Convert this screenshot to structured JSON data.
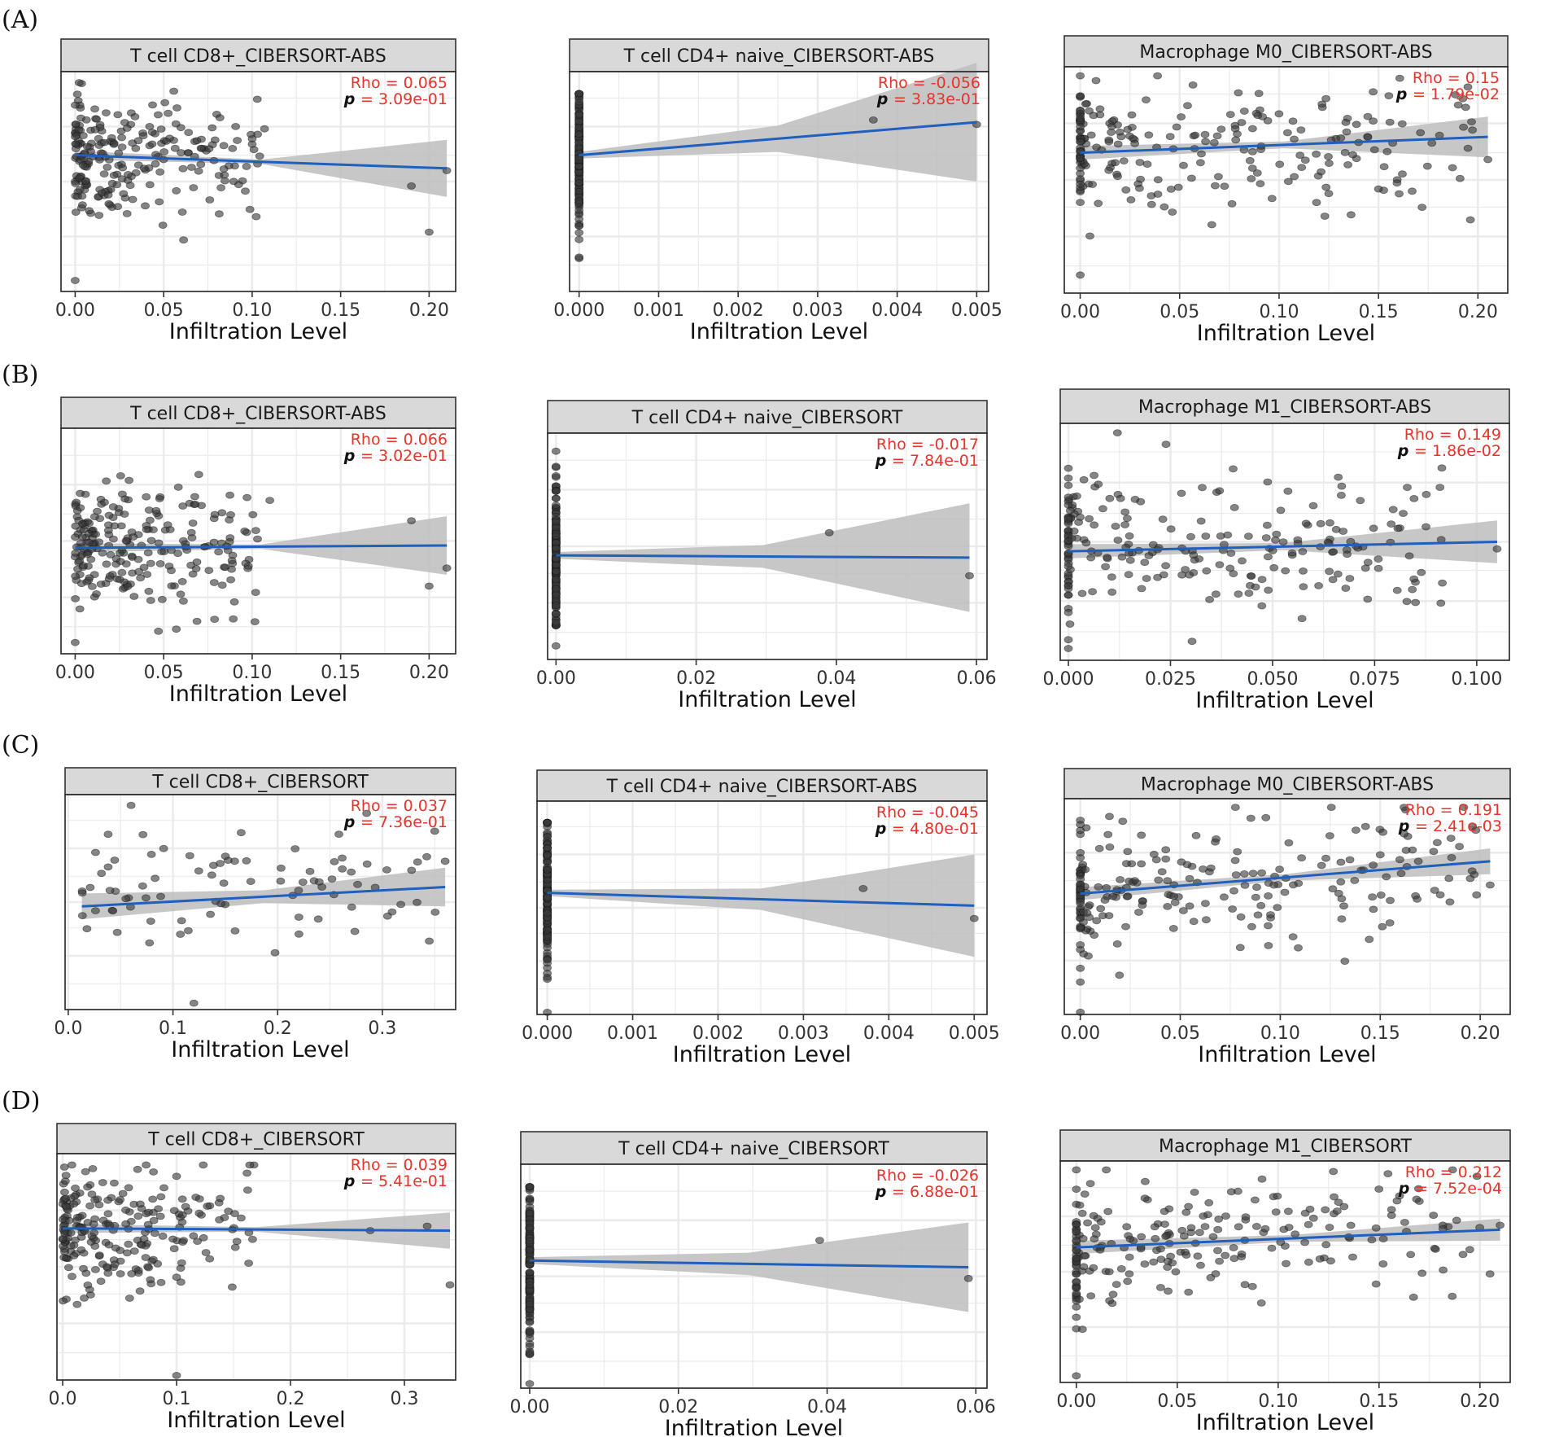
{
  "figure": {
    "row_labels": [
      "(A)",
      "(B)",
      "(C)",
      "(D)"
    ]
  },
  "colors": {
    "fit_line": "#1f5fbf",
    "confidence_band": "#bdbdbd",
    "points": "#3a3a3a",
    "rho": "#e8322b",
    "p_label": "#111111",
    "p_value": "#e8322b",
    "strip_bg": "#d9d9d9",
    "grid": "#ebebeb"
  },
  "chart_data": [
    {
      "type": "scatter",
      "row": "(A)",
      "title": "T cell CD8+_CIBERSORT-ABS",
      "xlabel": "Infiltration Level",
      "xlim": [
        -0.008,
        0.215
      ],
      "ylim": [
        0,
        100
      ],
      "xticks": [
        0,
        0.05,
        0.1,
        0.15,
        0.2
      ],
      "xtick_labels": [
        "0.00",
        "0.05",
        "0.10",
        "0.15",
        "0.20"
      ],
      "rho_text": "Rho = 0.065",
      "p_value": "= 3.09e-01",
      "seed": 11,
      "dist": "cluster",
      "n": 230,
      "x_max": 0.21,
      "fit": {
        "x": [
          0,
          0.21
        ],
        "y": [
          62,
          56
        ]
      },
      "ci": {
        "left": 2,
        "mid": 1,
        "right": 13
      },
      "highlight_points": [
        [
          0.05,
          60
        ],
        [
          0.1,
          67
        ],
        [
          0.107,
          74
        ],
        [
          0.19,
          48
        ],
        [
          0.21,
          55
        ],
        [
          0.2,
          27
        ],
        [
          0.0,
          5
        ]
      ]
    },
    {
      "type": "scatter",
      "row": "(A)",
      "title": "T cell CD4+ naive_CIBERSORT-ABS",
      "xlabel": "Infiltration Level",
      "xlim": [
        -0.00012,
        0.00515
      ],
      "ylim": [
        0,
        100
      ],
      "xticks": [
        0,
        0.001,
        0.002,
        0.003,
        0.004,
        0.005
      ],
      "xtick_labels": [
        "0.000",
        "0.001",
        "0.002",
        "0.003",
        "0.004",
        "0.005"
      ],
      "rho_text": "Rho = -0.056",
      "p_value": "= 3.83e-01",
      "seed": 21,
      "dist": "stack",
      "n": 170,
      "x_max": 0,
      "fit": {
        "x": [
          0,
          0.005
        ],
        "y": [
          62,
          77
        ]
      },
      "ci": {
        "left": 1.5,
        "mid": 6,
        "right": 27
      },
      "highlight_points": [
        [
          0.0037,
          78
        ],
        [
          0.005,
          76
        ]
      ]
    },
    {
      "type": "scatter",
      "row": "(A)",
      "title": "Macrophage M0_CIBERSORT-ABS",
      "xlabel": "Infiltration Level",
      "xlim": [
        -0.008,
        0.215
      ],
      "ylim": [
        0,
        100
      ],
      "xticks": [
        0,
        0.05,
        0.1,
        0.15,
        0.2
      ],
      "xtick_labels": [
        "0.00",
        "0.05",
        "0.10",
        "0.15",
        "0.20"
      ],
      "rho_text": "Rho = 0.15",
      "p_value": "= 1.79e-02",
      "seed": 31,
      "dist": "spread",
      "n": 230,
      "x_max": 0.2,
      "fit": {
        "x": [
          0,
          0.205
        ],
        "y": [
          62,
          69
        ]
      },
      "ci": {
        "left": 3,
        "mid": 1.5,
        "right": 9
      },
      "highlight_points": [
        [
          0.205,
          59
        ],
        [
          0.195,
          64
        ],
        [
          0.15,
          46
        ],
        [
          0.125,
          44
        ],
        [
          0.123,
          34
        ],
        [
          0.0,
          8
        ]
      ]
    },
    {
      "type": "scatter",
      "row": "(B)",
      "title": "T cell CD8+_CIBERSORT-ABS",
      "xlabel": "Infiltration Level",
      "xlim": [
        -0.008,
        0.215
      ],
      "ylim": [
        0,
        100
      ],
      "xticks": [
        0,
        0.05,
        0.1,
        0.15,
        0.2
      ],
      "xtick_labels": [
        "0.00",
        "0.05",
        "0.10",
        "0.15",
        "0.20"
      ],
      "rho_text": "Rho = 0.066",
      "p_value": "= 3.02e-01",
      "seed": 41,
      "dist": "cluster",
      "n": 230,
      "x_max": 0.21,
      "fit": {
        "x": [
          0,
          0.21
        ],
        "y": [
          47,
          48
        ]
      },
      "ci": {
        "left": 2,
        "mid": 1,
        "right": 13
      },
      "highlight_points": [
        [
          0.11,
          68
        ],
        [
          0.19,
          59
        ],
        [
          0.21,
          38
        ],
        [
          0.2,
          30
        ],
        [
          0.09,
          23
        ],
        [
          0.0,
          5
        ]
      ]
    },
    {
      "type": "scatter",
      "row": "(B)",
      "title": "T cell CD4+ naive_CIBERSORT",
      "xlabel": "Infiltration Level",
      "xlim": [
        -0.0012,
        0.0615
      ],
      "ylim": [
        0,
        100
      ],
      "xticks": [
        0,
        0.02,
        0.04,
        0.06
      ],
      "xtick_labels": [
        "0.00",
        "0.02",
        "0.04",
        "0.06"
      ],
      "rho_text": "Rho = -0.017",
      "p_value": "= 7.84e-01",
      "seed": 51,
      "dist": "stack",
      "n": 170,
      "x_max": 0,
      "fit": {
        "x": [
          0,
          0.059
        ],
        "y": [
          46,
          45
        ]
      },
      "ci": {
        "left": 1.5,
        "mid": 5,
        "right": 24
      },
      "highlight_points": [
        [
          0.039,
          56
        ],
        [
          0.059,
          37
        ],
        [
          0.0,
          92
        ],
        [
          0.0,
          6
        ]
      ]
    },
    {
      "type": "scatter",
      "row": "(B)",
      "title": "Macrophage M1_CIBERSORT-ABS",
      "xlabel": "Infiltration Level",
      "xlim": [
        -0.002,
        0.108
      ],
      "ylim": [
        0,
        100
      ],
      "xticks": [
        0,
        0.025,
        0.05,
        0.075,
        0.1
      ],
      "xtick_labels": [
        "0.000",
        "0.025",
        "0.050",
        "0.075",
        "0.100"
      ],
      "rho_text": "Rho = 0.149",
      "p_value": "= 1.86e-02",
      "seed": 61,
      "dist": "spread",
      "n": 230,
      "x_max": 0.092,
      "fit": {
        "x": [
          0,
          0.105
        ],
        "y": [
          46,
          50
        ]
      },
      "ci": {
        "left": 3,
        "mid": 1.5,
        "right": 9
      },
      "highlight_points": [
        [
          0.105,
          47
        ],
        [
          0.083,
          73
        ],
        [
          0.091,
          73
        ],
        [
          0.082,
          62
        ],
        [
          0.012,
          96
        ],
        [
          0.0,
          5
        ]
      ]
    },
    {
      "type": "scatter",
      "row": "(C)",
      "title": "T cell CD8+_CIBERSORT",
      "xlabel": "Infiltration Level",
      "xlim": [
        -0.003,
        0.37
      ],
      "ylim": [
        0,
        100
      ],
      "xticks": [
        0,
        0.1,
        0.2,
        0.3
      ],
      "xtick_labels": [
        "0.0",
        "0.1",
        "0.2",
        "0.3"
      ],
      "rho_text": "Rho = 0.037",
      "p_value": "= 7.36e-01",
      "seed": 71,
      "dist": "sparse",
      "n": 85,
      "x_max": 0.36,
      "fit": {
        "x": [
          0.013,
          0.36
        ],
        "y": [
          48,
          57
        ]
      },
      "ci": {
        "left": 6,
        "mid": 3,
        "right": 9
      },
      "highlight_points": [
        [
          0.35,
          83
        ],
        [
          0.36,
          69
        ],
        [
          0.06,
          95
        ],
        [
          0.12,
          3
        ]
      ]
    },
    {
      "type": "scatter",
      "row": "(C)",
      "title": "T cell CD4+ naive_CIBERSORT-ABS",
      "xlabel": "Infiltration Level",
      "xlim": [
        -0.00012,
        0.00515
      ],
      "ylim": [
        0,
        100
      ],
      "xticks": [
        0,
        0.001,
        0.002,
        0.003,
        0.004,
        0.005
      ],
      "xtick_labels": [
        "0.000",
        "0.001",
        "0.002",
        "0.003",
        "0.004",
        "0.005"
      ],
      "rho_text": "Rho = -0.045",
      "p_value": "= 4.80e-01",
      "seed": 81,
      "dist": "stack",
      "n": 170,
      "x_max": 0,
      "fit": {
        "x": [
          0,
          0.005
        ],
        "y": [
          57,
          51
        ]
      },
      "ci": {
        "left": 1.5,
        "mid": 5,
        "right": 24
      },
      "highlight_points": [
        [
          0.0037,
          59
        ],
        [
          0.005,
          45
        ],
        [
          0.0,
          1
        ]
      ]
    },
    {
      "type": "scatter",
      "row": "(C)",
      "title": "Macrophage M0_CIBERSORT-ABS",
      "xlabel": "Infiltration Level",
      "xlim": [
        -0.008,
        0.215
      ],
      "ylim": [
        0,
        100
      ],
      "xticks": [
        0,
        0.05,
        0.1,
        0.15,
        0.2
      ],
      "xtick_labels": [
        "0.00",
        "0.05",
        "0.10",
        "0.15",
        "0.20"
      ],
      "rho_text": "Rho = 0.191",
      "p_value": "= 2.41e-03",
      "seed": 91,
      "dist": "spread",
      "n": 230,
      "x_max": 0.2,
      "fit": {
        "x": [
          0,
          0.205
        ],
        "y": [
          56,
          71
        ]
      },
      "ci": {
        "left": 3,
        "mid": 1.5,
        "right": 6
      },
      "highlight_points": [
        [
          0.205,
          60
        ],
        [
          0.195,
          63
        ],
        [
          0.15,
          74
        ],
        [
          0.0,
          1
        ]
      ]
    },
    {
      "type": "scatter",
      "row": "(D)",
      "title": "T cell CD8+_CIBERSORT",
      "xlabel": "Infiltration Level",
      "xlim": [
        -0.005,
        0.345
      ],
      "ylim": [
        0,
        100
      ],
      "xticks": [
        0,
        0.1,
        0.2,
        0.3
      ],
      "xtick_labels": [
        "0.0",
        "0.1",
        "0.2",
        "0.3"
      ],
      "rho_text": "Rho = 0.039",
      "p_value": "= 5.41e-01",
      "seed": 101,
      "dist": "cluster",
      "n": 230,
      "x_max": 0.34,
      "fit": {
        "x": [
          0,
          0.34
        ],
        "y": [
          67,
          66
        ]
      },
      "ci": {
        "left": 2,
        "mid": 1,
        "right": 8
      },
      "highlight_points": [
        [
          0.34,
          42
        ],
        [
          0.32,
          68
        ],
        [
          0.27,
          66
        ],
        [
          0.1,
          90
        ],
        [
          0.1,
          2
        ]
      ]
    },
    {
      "type": "scatter",
      "row": "(D)",
      "title": "T cell CD4+ naive_CIBERSORT",
      "xlabel": "Infiltration Level",
      "xlim": [
        -0.0012,
        0.0615
      ],
      "ylim": [
        0,
        100
      ],
      "xticks": [
        0,
        0.02,
        0.04,
        0.06
      ],
      "xtick_labels": [
        "0.00",
        "0.02",
        "0.04",
        "0.06"
      ],
      "rho_text": "Rho = -0.026",
      "p_value": "= 6.88e-01",
      "seed": 111,
      "dist": "stack",
      "n": 170,
      "x_max": 0,
      "fit": {
        "x": [
          0,
          0.059
        ],
        "y": [
          57,
          54
        ]
      },
      "ci": {
        "left": 1.5,
        "mid": 5,
        "right": 20
      },
      "highlight_points": [
        [
          0.039,
          66
        ],
        [
          0.059,
          49
        ],
        [
          0.0,
          2
        ]
      ]
    },
    {
      "type": "scatter",
      "row": "(D)",
      "title": "Macrophage M1_CIBERSORT",
      "xlabel": "Infiltration Level",
      "xlim": [
        -0.008,
        0.215
      ],
      "ylim": [
        0,
        100
      ],
      "xticks": [
        0,
        0.05,
        0.1,
        0.15,
        0.2
      ],
      "xtick_labels": [
        "0.00",
        "0.05",
        "0.10",
        "0.15",
        "0.20"
      ],
      "rho_text": "Rho = 0.212",
      "p_value": "= 7.52e-04",
      "seed": 121,
      "dist": "spread",
      "n": 230,
      "x_max": 0.2,
      "fit": {
        "x": [
          0,
          0.21
        ],
        "y": [
          61,
          69
        ]
      },
      "ci": {
        "left": 3,
        "mid": 1.5,
        "right": 5
      },
      "highlight_points": [
        [
          0.21,
          71
        ],
        [
          0.195,
          60
        ],
        [
          0.205,
          49
        ],
        [
          0.003,
          24
        ],
        [
          0.0,
          3
        ]
      ]
    }
  ]
}
